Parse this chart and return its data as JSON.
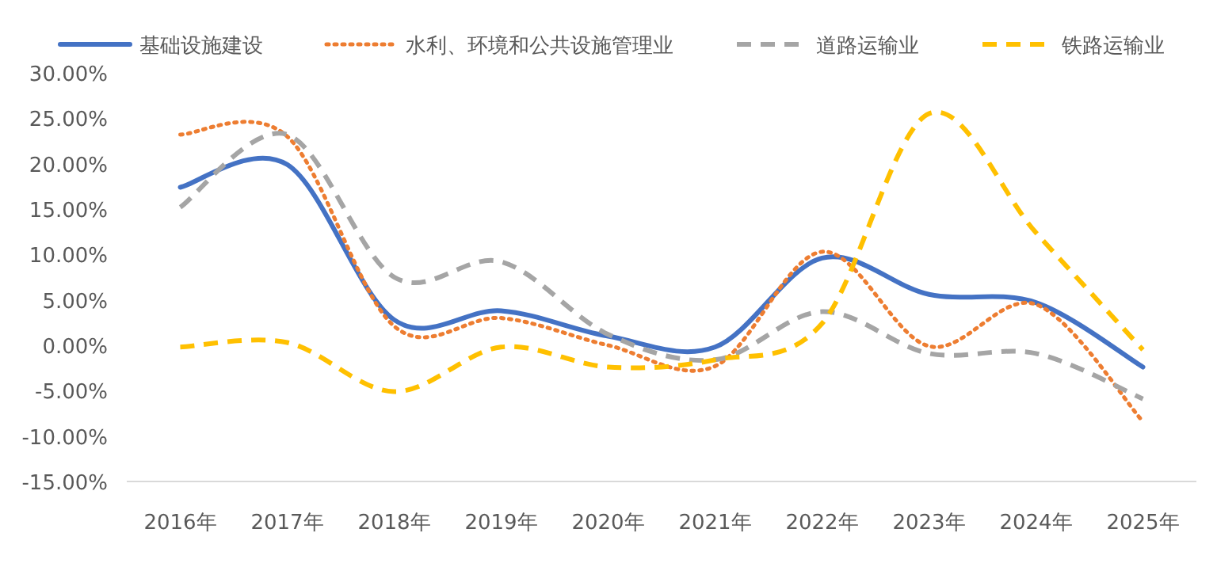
{
  "chart_data": {
    "type": "line",
    "categories": [
      "2016年",
      "2017年",
      "2018年",
      "2019年",
      "2020年",
      "2021年",
      "2022年",
      "2023年",
      "2024年",
      "2025年"
    ],
    "series": [
      {
        "name": "基础设施建设",
        "color": "#4472c4",
        "line_style": "solid",
        "values": [
          17.4,
          19.9,
          2.8,
          3.8,
          1.0,
          -0.2,
          9.6,
          5.6,
          4.7,
          -2.4
        ]
      },
      {
        "name": "水利、环境和公共设施管理业",
        "color": "#ed7d31",
        "line_style": "dotted",
        "values": [
          23.2,
          23.0,
          2.1,
          3.0,
          0.0,
          -2.3,
          10.3,
          -0.1,
          4.5,
          -8.4
        ]
      },
      {
        "name": "道路运输业",
        "color": "#a5a5a5",
        "line_style": "dashed",
        "values": [
          15.2,
          23.2,
          7.5,
          9.2,
          1.2,
          -1.6,
          3.7,
          -0.9,
          -0.9,
          -5.9
        ]
      },
      {
        "name": "铁路运输业",
        "color": "#ffc000",
        "line_style": "dashed",
        "values": [
          -0.2,
          0.3,
          -5.1,
          -0.2,
          -2.4,
          -1.6,
          2.4,
          25.5,
          12.4,
          -0.5
        ]
      }
    ],
    "ylim": [
      -15,
      30
    ],
    "yticks": [
      {
        "value": -15,
        "label": "-15.00%"
      },
      {
        "value": -10,
        "label": "-10.00%"
      },
      {
        "value": -5,
        "label": "-5.00%"
      },
      {
        "value": 0,
        "label": "0.00%"
      },
      {
        "value": 5,
        "label": "5.00%"
      },
      {
        "value": 10,
        "label": "10.00%"
      },
      {
        "value": 15,
        "label": "15.00%"
      },
      {
        "value": 20,
        "label": "20.00%"
      },
      {
        "value": 25,
        "label": "25.00%"
      },
      {
        "value": 30,
        "label": "30.00%"
      }
    ],
    "legend": "top",
    "grid": false,
    "marker": "none"
  }
}
